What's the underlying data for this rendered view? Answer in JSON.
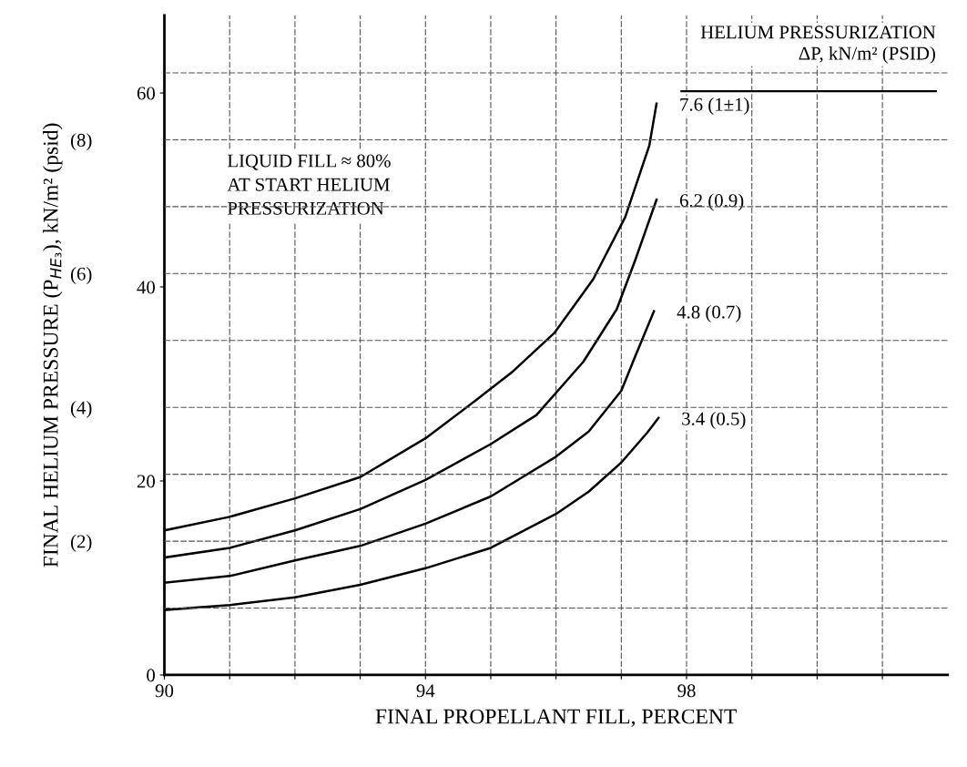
{
  "chart_data": {
    "type": "line",
    "xlabel": "FINAL PROPELLANT FILL, PERCENT",
    "y2label": "FINAL HELIUM PRESSURE (P$_{HE₃}$), kN/m² (psid)",
    "legend_title": "HELIUM PRESSURIZATION\nΔP, kN/m² (PSID)",
    "annotations": [
      "LIQUID FILL ≈ 80%\nAT START HELIUM\nPRESSURIZATION"
    ],
    "xlim": [
      90,
      102
    ],
    "ylim": [
      0,
      68
    ],
    "xticks": [
      90,
      {
        "value": 91,
        "label": null
      },
      {
        "value": 92,
        "label": null
      },
      {
        "value": 93,
        "label": null
      },
      94,
      {
        "value": 95,
        "label": null
      },
      {
        "value": 96,
        "label": null
      },
      {
        "value": 97,
        "label": null
      },
      98,
      {
        "value": 99,
        "label": null
      },
      {
        "value": 100,
        "label": null
      },
      {
        "value": 101,
        "label": null
      }
    ],
    "yticks": [
      0,
      20,
      40,
      60
    ],
    "y2lim": [
      0,
      9.86
    ],
    "y2ticks": [
      {
        "value": 1,
        "label": null
      },
      {
        "value": 2,
        "label": "(2)"
      },
      {
        "value": 3,
        "label": null
      },
      {
        "value": 4,
        "label": "(4)"
      },
      {
        "value": 5,
        "label": null
      },
      {
        "value": 6,
        "label": "(6)"
      },
      {
        "value": 7,
        "label": null
      },
      {
        "value": 8,
        "label": "(8)"
      },
      {
        "value": 9,
        "label": null
      }
    ],
    "grid": true,
    "legend": "right",
    "marker": "none",
    "line_style": "solid",
    "series": [
      {
        "name": "7.6 (1±1)",
        "color": "#000000",
        "x": [
          90,
          91,
          92,
          93,
          94,
          94.77,
          95.34,
          95.98,
          96.57,
          97.06,
          97.43,
          97.54
        ],
        "values": [
          14.9,
          16.3,
          18.2,
          20.4,
          24.4,
          28.3,
          31.3,
          35.3,
          40.8,
          47.2,
          54.6,
          58.9
        ]
      },
      {
        "name": "6.2 (0.9)",
        "color": "#000000",
        "x": [
          90,
          91,
          92,
          93,
          94,
          95,
          95.7,
          96.42,
          96.93,
          97.21,
          97.54
        ],
        "values": [
          12.1,
          13.1,
          14.9,
          17.1,
          20.1,
          23.8,
          26.8,
          32.3,
          37.7,
          42.7,
          49.0
        ]
      },
      {
        "name": "4.8 (0.7)",
        "color": "#000000",
        "x": [
          90,
          91,
          92,
          93,
          94,
          95,
          96,
          96.5,
          97,
          97.21,
          97.5
        ],
        "values": [
          9.5,
          10.2,
          11.8,
          13.3,
          15.6,
          18.4,
          22.5,
          25.1,
          29.3,
          32.8,
          37.5
        ]
      },
      {
        "name": "3.4 (0.5)",
        "color": "#000000",
        "x": [
          90,
          91,
          92,
          93,
          94,
          95,
          96,
          96.5,
          97,
          97.4,
          97.57
        ],
        "values": [
          6.7,
          7.2,
          8.0,
          9.3,
          11.0,
          13.1,
          16.6,
          18.9,
          21.9,
          25.0,
          26.5
        ]
      }
    ]
  }
}
